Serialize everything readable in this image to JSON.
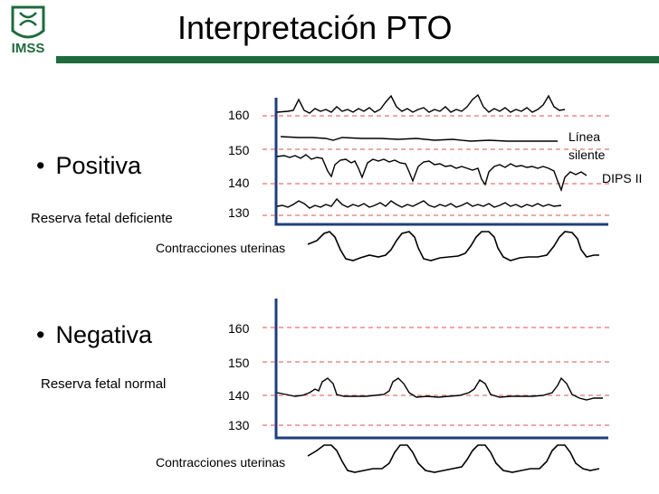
{
  "slide": {
    "title": "Interpretación PTO",
    "logo_text": "IMSS",
    "accent_color": "#1e6b3d",
    "grid_color": "#d9534f"
  },
  "positive": {
    "bullet": "Positiva",
    "note": "Reserva fetal deficiente",
    "ticks": [
      "160",
      "150",
      "140",
      "130"
    ],
    "label_line1": "Línea",
    "label_line2": "silente",
    "label_dips": "DIPS II",
    "contractions": "Contracciones uterinas"
  },
  "negative": {
    "bullet": "Negativa",
    "note": "Reserva fetal normal",
    "ticks": [
      "160",
      "150",
      "140",
      "130"
    ],
    "contractions": "Contracciones uterinas"
  }
}
